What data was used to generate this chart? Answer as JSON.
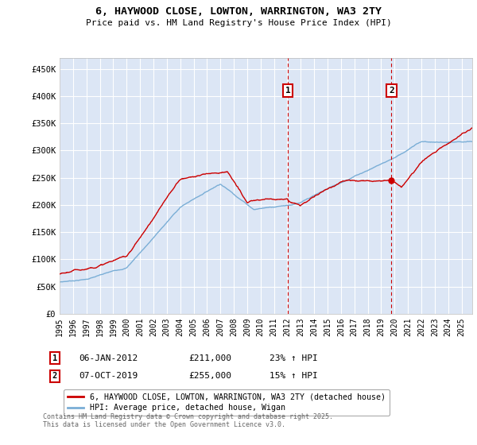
{
  "title_line1": "6, HAYWOOD CLOSE, LOWTON, WARRINGTON, WA3 2TY",
  "title_line2": "Price paid vs. HM Land Registry's House Price Index (HPI)",
  "ylabel_ticks": [
    "£0",
    "£50K",
    "£100K",
    "£150K",
    "£200K",
    "£250K",
    "£300K",
    "£350K",
    "£400K",
    "£450K"
  ],
  "ytick_values": [
    0,
    50000,
    100000,
    150000,
    200000,
    250000,
    300000,
    350000,
    400000,
    450000
  ],
  "ylim": [
    0,
    470000
  ],
  "xlim_start": 1995.0,
  "xlim_end": 2025.8,
  "background_color": "#dce6f5",
  "grid_color": "#ffffff",
  "line1_color": "#cc0000",
  "line2_color": "#7aaed6",
  "marker1_date": 2012.03,
  "marker2_date": 2019.77,
  "legend_line1": "6, HAYWOOD CLOSE, LOWTON, WARRINGTON, WA3 2TY (detached house)",
  "legend_line2": "HPI: Average price, detached house, Wigan",
  "annotation1": [
    "1",
    "06-JAN-2012",
    "£211,000",
    "23% ↑ HPI"
  ],
  "annotation2": [
    "2",
    "07-OCT-2019",
    "£255,000",
    "15% ↑ HPI"
  ],
  "footer": "Contains HM Land Registry data © Crown copyright and database right 2025.\nThis data is licensed under the Open Government Licence v3.0.",
  "xtick_years": [
    1995,
    1996,
    1997,
    1998,
    1999,
    2000,
    2001,
    2002,
    2003,
    2004,
    2005,
    2006,
    2007,
    2008,
    2009,
    2010,
    2011,
    2012,
    2013,
    2014,
    2015,
    2016,
    2017,
    2018,
    2019,
    2020,
    2021,
    2022,
    2023,
    2024,
    2025
  ]
}
